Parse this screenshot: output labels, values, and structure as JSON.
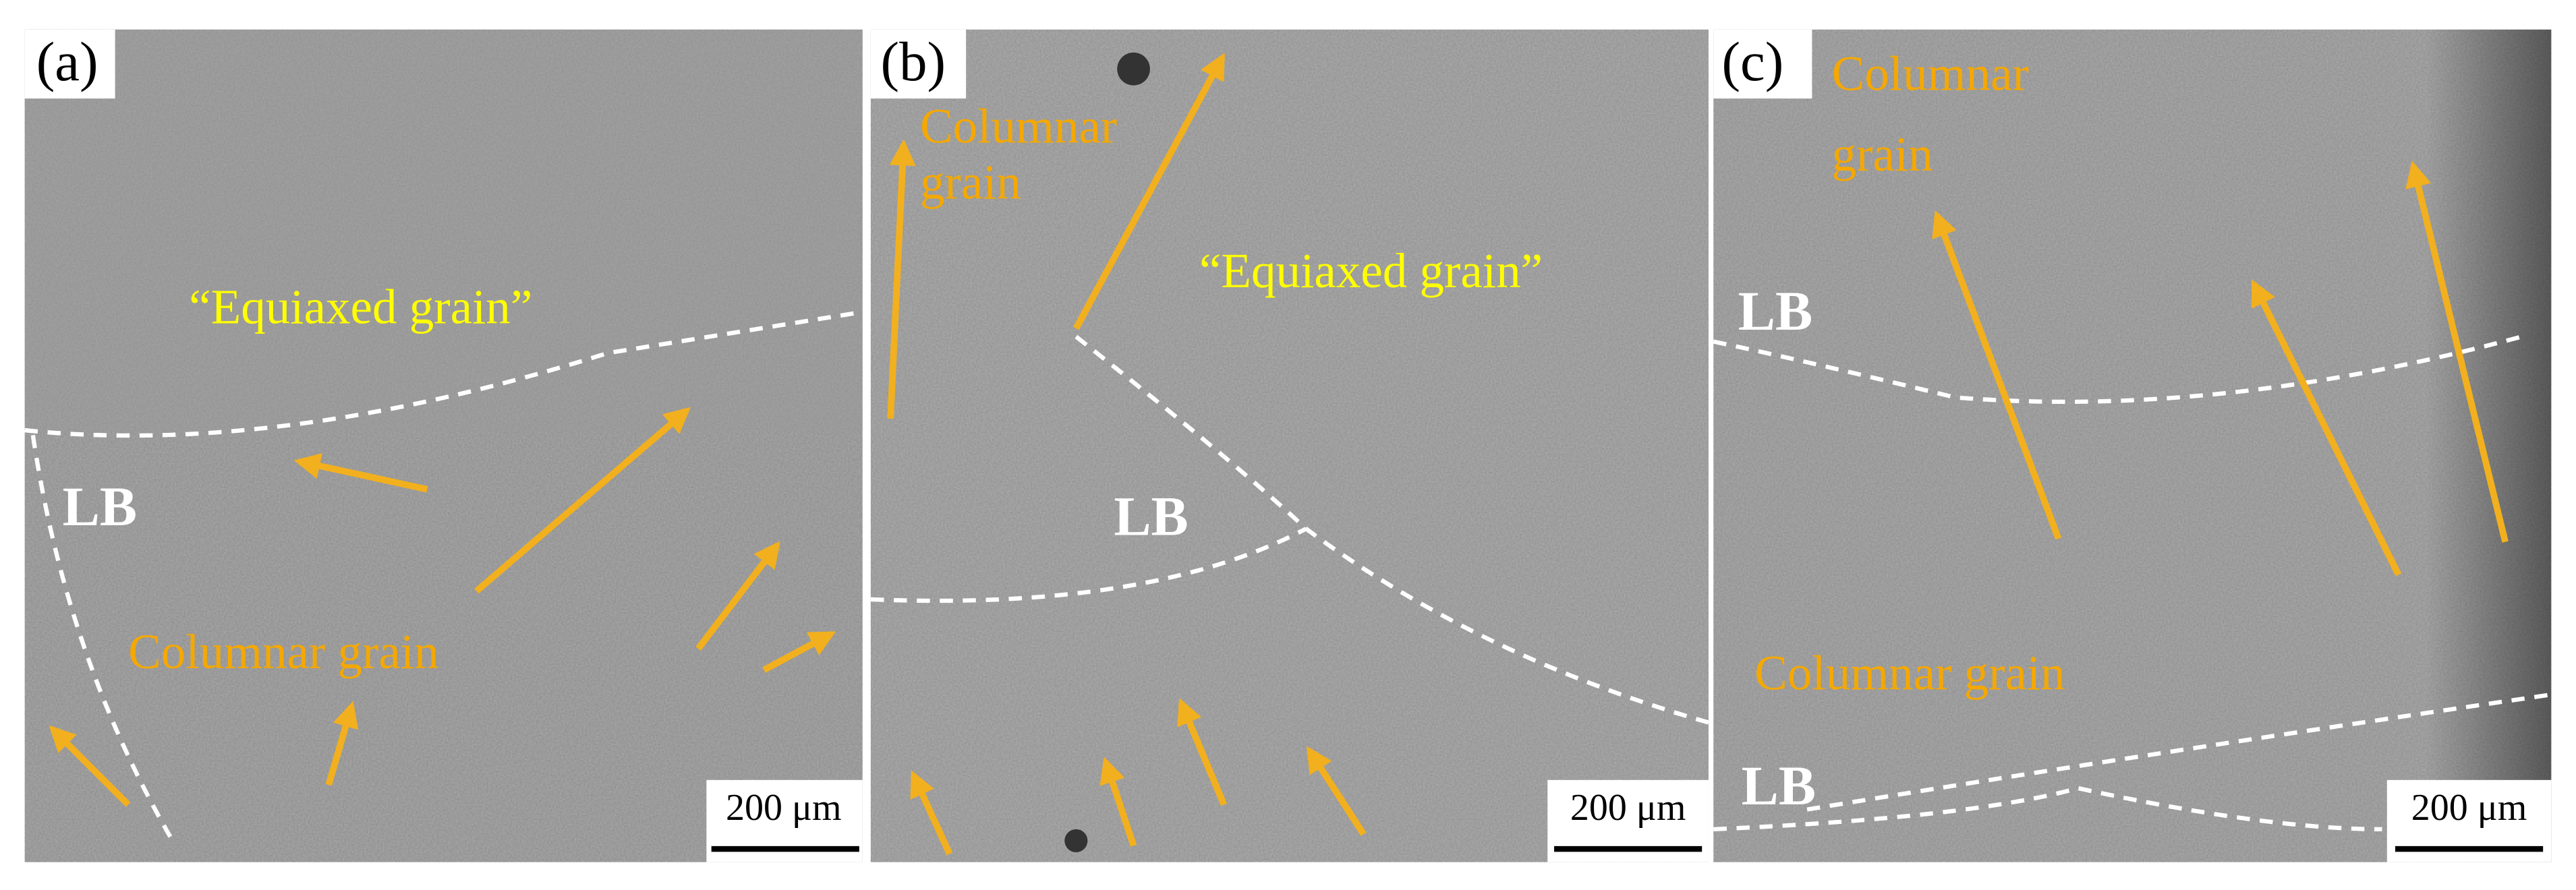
{
  "panels": [
    {
      "label": "(a)",
      "annotations": [
        "“Equiaxed grain”",
        "LB",
        "Columnar grain"
      ],
      "scale_bar": "200 μm"
    },
    {
      "label": "(b)",
      "annotations": [
        "Columnar",
        "grain",
        "“Equiaxed grain”",
        "LB"
      ],
      "scale_bar": "200 μm"
    },
    {
      "label": "(c)",
      "annotations": [
        "Columnar",
        "grain",
        "LB",
        "Columnar grain",
        "LB"
      ],
      "scale_bar": "200 μm"
    }
  ]
}
